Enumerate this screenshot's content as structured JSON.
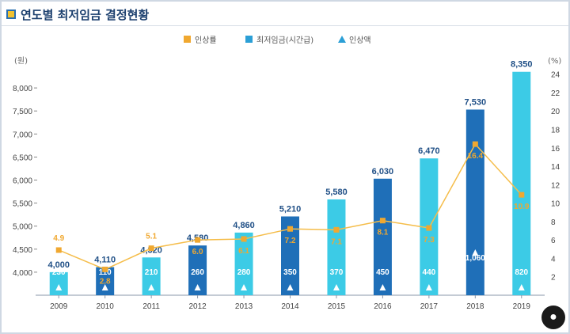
{
  "title": "연도별 최저임금 결정현황",
  "title_icon": "chart-icon",
  "logo_icon": "apple-logo-icon",
  "legend": [
    {
      "label": "인상률",
      "color": "#f0a830",
      "shape": "square"
    },
    {
      "label": "최저임금(시간급)",
      "color": "#2b9fd6",
      "shape": "square"
    },
    {
      "label": "인상액",
      "color": "#2b9fd6",
      "shape": "triangle"
    }
  ],
  "y_left_unit": "(원)",
  "y_right_unit": "(%)",
  "chart_data": {
    "type": "bar",
    "title": "연도별 최저임금 결정현황",
    "categories": [
      "2009",
      "2010",
      "2011",
      "2012",
      "2013",
      "2014",
      "2015",
      "2016",
      "2017",
      "2018",
      "2019"
    ],
    "series": [
      {
        "name": "최저임금(시간급)",
        "values": [
          4000,
          4110,
          4320,
          4580,
          4860,
          5210,
          5580,
          6030,
          6470,
          7530,
          8350
        ]
      },
      {
        "name": "인상액",
        "values": [
          230,
          110,
          210,
          260,
          280,
          350,
          370,
          450,
          440,
          1060,
          820
        ]
      },
      {
        "name": "인상률",
        "values": [
          4.9,
          2.8,
          5.1,
          6.0,
          6.1,
          7.2,
          7.1,
          8.1,
          7.3,
          16.4,
          10.9
        ]
      }
    ],
    "bar_label_text": [
      "4,000",
      "4,110",
      "4,320",
      "4,580",
      "4,860",
      "5,210",
      "5,580",
      "6,030",
      "6,470",
      "7,530",
      "8,350"
    ],
    "rate_label_text": [
      "4.9",
      "2.8",
      "5.1",
      "6.0",
      "6.1",
      "7.2",
      "7.1",
      "8.1",
      "7.3",
      "16.4",
      "10.9"
    ],
    "bar_colors": [
      "#3ccbe6",
      "#1f6fb8",
      "#3ccbe6",
      "#1f6fb8",
      "#3ccbe6",
      "#1f6fb8",
      "#3ccbe6",
      "#1f6fb8",
      "#3ccbe6",
      "#1f6fb8",
      "#3ccbe6"
    ],
    "line_color": "#f5bd4a",
    "marker_color": "#f0a830",
    "rate_label_color": "#f0a830",
    "ylim_left": [
      3500,
      8500
    ],
    "y_left_ticks": [
      "4,000",
      "4,500",
      "5,000",
      "5,500",
      "6,000",
      "6,500",
      "7,000",
      "7,500",
      "8,000"
    ],
    "ylim_right": [
      0,
      25
    ],
    "y_right_ticks": [
      "2",
      "4",
      "6",
      "8",
      "10",
      "12",
      "14",
      "16",
      "18",
      "20",
      "22",
      "24"
    ],
    "grid": false,
    "legend_position": "top-center"
  }
}
